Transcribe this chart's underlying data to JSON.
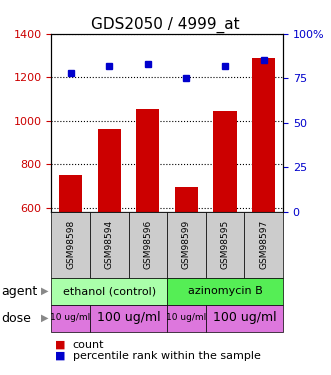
{
  "title": "GDS2050 / 4999_at",
  "samples": [
    "GSM98598",
    "GSM98594",
    "GSM98596",
    "GSM98599",
    "GSM98595",
    "GSM98597"
  ],
  "counts": [
    750,
    960,
    1055,
    695,
    1045,
    1290
  ],
  "percentiles": [
    78,
    82,
    83,
    75,
    82,
    85
  ],
  "ylim_left": [
    580,
    1400
  ],
  "ylim_right": [
    0,
    100
  ],
  "yticks_left": [
    600,
    800,
    1000,
    1200,
    1400
  ],
  "yticks_right": [
    0,
    25,
    50,
    75,
    100
  ],
  "right_tick_labels": [
    "0",
    "25",
    "50",
    "75",
    "100%"
  ],
  "bar_color": "#cc0000",
  "dot_color": "#0000cc",
  "bar_width": 0.6,
  "agent_groups": [
    {
      "label": "ethanol (control)",
      "start": 0,
      "end": 3,
      "color": "#aaffaa"
    },
    {
      "label": "azinomycin B",
      "start": 3,
      "end": 6,
      "color": "#55ee55"
    }
  ],
  "dose_groups": [
    {
      "label": "10 ug/ml",
      "start": 0,
      "end": 1,
      "fontsize": 6.5
    },
    {
      "label": "100 ug/ml",
      "start": 1,
      "end": 3,
      "fontsize": 9
    },
    {
      "label": "10 ug/ml",
      "start": 3,
      "end": 4,
      "fontsize": 6.5
    },
    {
      "label": "100 ug/ml",
      "start": 4,
      "end": 6,
      "fontsize": 9
    }
  ],
  "dose_color": "#dd77dd",
  "bar_axis_color": "#cc0000",
  "pct_axis_color": "#0000cc",
  "title_fontsize": 11,
  "tick_fontsize": 8,
  "sample_fontsize": 6.5,
  "legend_fontsize": 8,
  "row_label_fontsize": 9,
  "sample_box_color": "#cccccc",
  "fig_bg": "#ffffff"
}
